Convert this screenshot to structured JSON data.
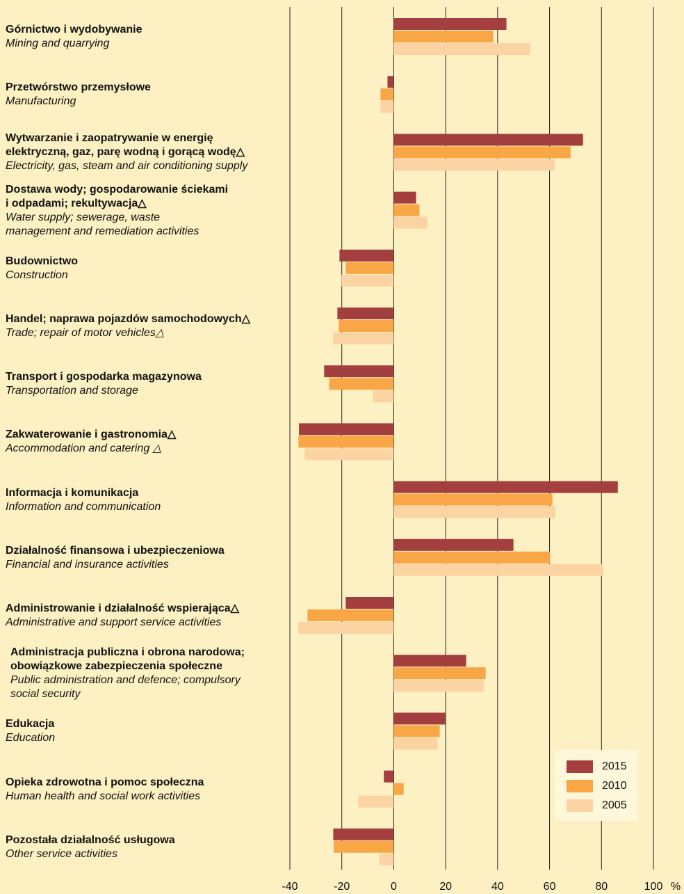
{
  "chart_data": {
    "type": "barh",
    "categories": [
      {
        "pl": "Górnictwo i wydobywanie",
        "en": "Mining and quarrying"
      },
      {
        "pl": "Przetwórstwo przemysłowe",
        "en": "Manufacturing"
      },
      {
        "pl": "Wytwarzanie i zaopatrywanie w energię\nelektryczną, gaz, parę wodną i gorącą wodę△",
        "en": "Electricity, gas, steam and air conditioning supply"
      },
      {
        "pl": "Dostawa wody; gospodarowanie ściekami\ni odpadami; rekultywacja△",
        "en": "Water supply; sewerage, waste\nmanagement and remediation activities"
      },
      {
        "pl": "Budownictwo",
        "en": "Construction"
      },
      {
        "pl": "Handel; naprawa pojazdów samochodowych△",
        "en": "Trade; repair of motor vehicles△"
      },
      {
        "pl": "Transport i gospodarka magazynowa",
        "en": "Transportation and storage"
      },
      {
        "pl": "Zakwaterowanie i gastronomia△",
        "en": "Accommodation and catering △"
      },
      {
        "pl": "Informacja i komunikacja",
        "en": "Information and communication"
      },
      {
        "pl": "Działalność finansowa i ubezpieczeniowa",
        "en": "Financial and insurance activities"
      },
      {
        "pl": "Administrowanie i działalność wspierająca△",
        "en": "Administrative and support service activities"
      },
      {
        "pl": "Administracja publiczna i obrona narodowa;\nobowiązkowe zabezpieczenia społeczne",
        "en": "Public administration and defence; compulsory\nsocial security"
      },
      {
        "pl": "Edukacja",
        "en": "Education"
      },
      {
        "pl": "Opieka zdrowotna i pomoc społeczna",
        "en": "Human health and social work activities"
      },
      {
        "pl": "Pozostała działalność usługowa",
        "en": "Other service activities"
      }
    ],
    "series": [
      {
        "name": "2015",
        "color": "#a43f3f",
        "values": [
          43.4,
          -2.4,
          72.9,
          8.6,
          -20.9,
          -21.7,
          -26.8,
          -36.5,
          86.3,
          46.1,
          -18.5,
          27.9,
          19.8,
          -3.8,
          -23.3
        ]
      },
      {
        "name": "2010",
        "color": "#f9a647",
        "values": [
          38.3,
          -5.1,
          68.1,
          9.9,
          -18.5,
          -21.2,
          -24.9,
          -36.7,
          61.1,
          60.1,
          -33.2,
          35.4,
          17.7,
          3.8,
          -23.1
        ]
      },
      {
        "name": "2005",
        "color": "#fcd3a2",
        "values": [
          52.5,
          -5.1,
          61.9,
          12.9,
          -20.1,
          -23.3,
          -8.0,
          -34.3,
          62.2,
          80.7,
          -36.7,
          34.6,
          16.9,
          -13.7,
          -5.6
        ]
      }
    ],
    "xlim": [
      -40,
      100
    ],
    "xticks": [
      -40,
      -20,
      0,
      20,
      40,
      60,
      80,
      100
    ],
    "x_unit": "%",
    "grid": true,
    "legend": "lower right"
  }
}
